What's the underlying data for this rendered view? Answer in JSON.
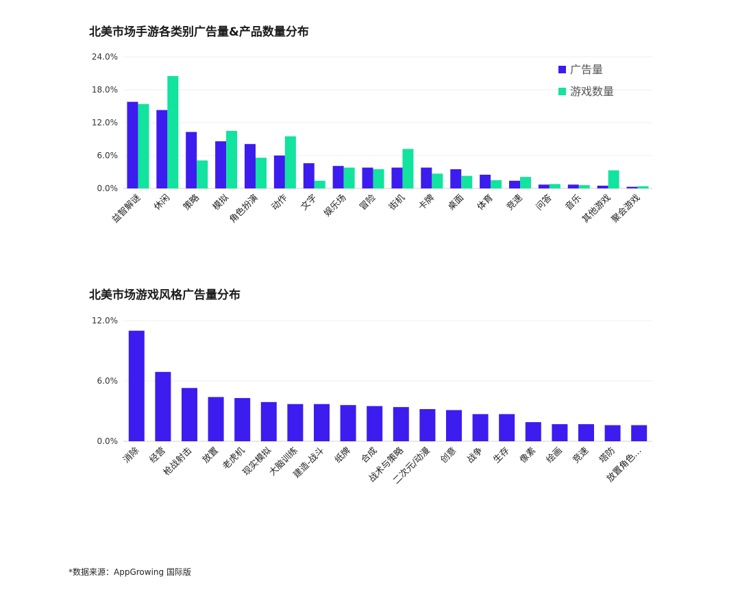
{
  "chart_data": [
    {
      "type": "bar",
      "title": "北美市场手游各类别广告量&产品数量分布",
      "categories": [
        "益智解谜",
        "休闲",
        "策略",
        "模拟",
        "角色扮演",
        "动作",
        "文字",
        "娱乐场",
        "冒险",
        "街机",
        "卡牌",
        "桌面",
        "体育",
        "竞速",
        "问答",
        "音乐",
        "其他游戏",
        "聚会游戏"
      ],
      "series": [
        {
          "name": "广告量",
          "color": "#3d1cf0",
          "values": [
            15.8,
            14.3,
            10.3,
            8.6,
            8.1,
            6.0,
            4.6,
            4.1,
            3.8,
            3.8,
            3.8,
            3.5,
            2.5,
            1.4,
            0.7,
            0.7,
            0.5,
            0.3
          ]
        },
        {
          "name": "游戏数量",
          "color": "#12e39e",
          "values": [
            15.4,
            20.5,
            5.1,
            10.5,
            5.6,
            9.5,
            1.4,
            3.8,
            3.5,
            7.2,
            2.7,
            2.3,
            1.5,
            2.1,
            0.8,
            0.6,
            3.3,
            0.4
          ]
        }
      ],
      "yticks": [
        "0.0%",
        "6.0%",
        "12.0%",
        "18.0%",
        "24.0%"
      ],
      "ylim": [
        0,
        24
      ],
      "legend": "top-right",
      "grid": true
    },
    {
      "type": "bar",
      "title": "北美市场游戏风格广告量分布",
      "categories": [
        "消除",
        "经营",
        "枪战射击",
        "放置",
        "老虎机",
        "现实模拟",
        "大脑训练",
        "建造-战斗",
        "纸牌",
        "合成",
        "战术与策略",
        "二次元/动漫",
        "创意",
        "战争",
        "生存",
        "像素",
        "绘画",
        "竞速",
        "塔防",
        "放置角色…"
      ],
      "series": [
        {
          "name": "",
          "color": "#3d1cf0",
          "values": [
            11.0,
            6.9,
            5.3,
            4.4,
            4.3,
            3.9,
            3.7,
            3.7,
            3.6,
            3.5,
            3.4,
            3.2,
            3.1,
            2.7,
            2.7,
            1.9,
            1.7,
            1.7,
            1.6,
            1.6
          ]
        }
      ],
      "yticks": [
        "0.0%",
        "6.0%",
        "12.0%"
      ],
      "ylim": [
        0,
        12
      ],
      "grid": true
    }
  ],
  "footer": {
    "source": "*数据来源：AppGrowing 国际版"
  }
}
